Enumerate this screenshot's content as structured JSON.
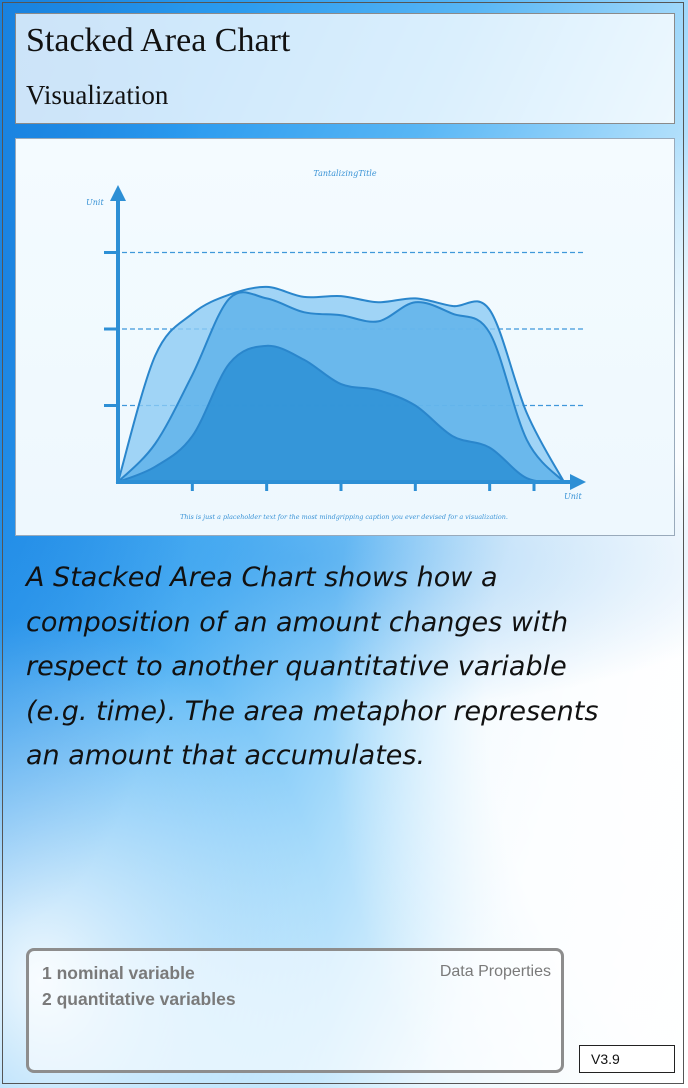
{
  "header": {
    "title": "Stacked Area Chart",
    "subtitle": "Visualization"
  },
  "chart_data": {
    "type": "area",
    "title": "TantalizingTitle",
    "xlabel": "Unit",
    "ylabel": "Unit",
    "caption": "This is just a placeholder text for the most mindgripping caption you ever devised for a visualization.",
    "grid": "horizontal dashed",
    "stacked": true,
    "x": [
      0,
      1,
      2,
      3,
      4,
      5,
      6,
      7,
      8,
      9,
      10,
      11,
      12
    ],
    "ylim": [
      0,
      4
    ],
    "series": [
      {
        "values": [
          0,
          0.2,
          0.6,
          1.55,
          1.78,
          1.6,
          1.28,
          1.2,
          1.0,
          0.6,
          0.45,
          0.05,
          0
        ]
      },
      {
        "values": [
          0,
          0.3,
          0.8,
          0.85,
          0.62,
          0.62,
          0.9,
          0.9,
          1.35,
          1.6,
          1.5,
          0.5,
          0
        ]
      },
      {
        "values": [
          0,
          1.15,
          0.8,
          0.05,
          0.15,
          0.2,
          0.25,
          0.25,
          0.05,
          0.1,
          0.3,
          0.35,
          0
        ]
      }
    ],
    "colors": [
      "#2b8fd6",
      "#5db0ea",
      "#8ccaf4"
    ]
  },
  "description": "A Stacked Area Chart shows how a composition of an amount changes with respect to another quantitative variable (e.g. time). The area metaphor represents an amount that accumulates.",
  "properties": {
    "label": "Data Properties",
    "line1": "1 nominal variable",
    "line2": "2 quantitative variables"
  },
  "version": "V3.9"
}
